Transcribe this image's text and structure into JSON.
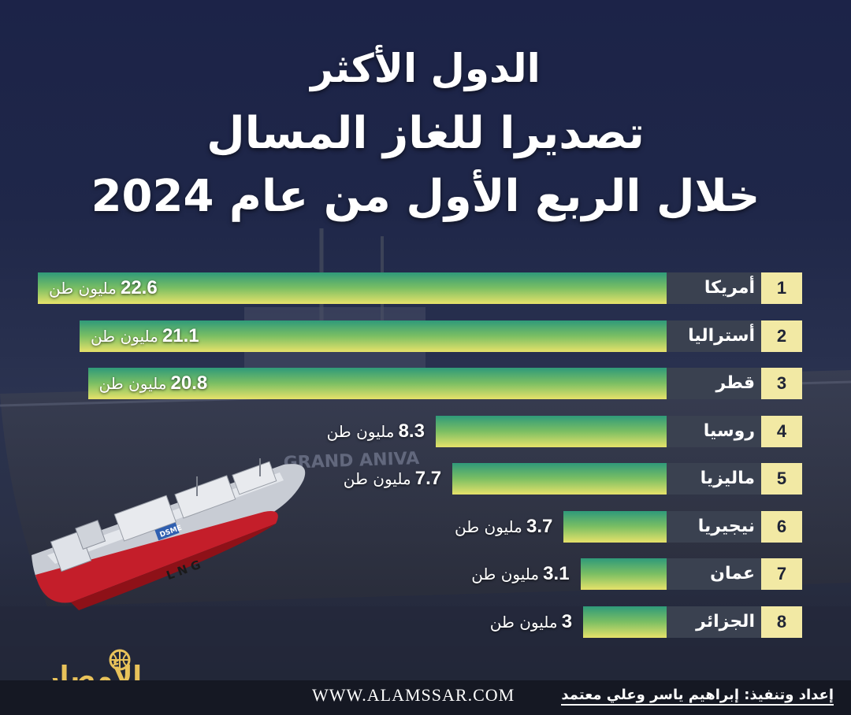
{
  "title": {
    "line1": "الدول الأكثر",
    "line2": "تصديرا للغاز المسال",
    "line3": "خلال الربع الأول من عام 2024"
  },
  "chart_data": {
    "type": "bar",
    "orientation": "horizontal",
    "unit": "مليون طن",
    "categories": [
      "أمريكا",
      "أستراليا",
      "قطر",
      "روسيا",
      "ماليزيا",
      "نيجيريا",
      "عمان",
      "الجزائر"
    ],
    "ranks": [
      "1",
      "2",
      "3",
      "4",
      "5",
      "6",
      "7",
      "8"
    ],
    "values": [
      22.6,
      21.1,
      20.8,
      8.3,
      7.7,
      3.7,
      3.1,
      3
    ],
    "value_labels": [
      "22.6",
      "21.1",
      "20.8",
      "8.3",
      "7.7",
      "3.7",
      "3.1",
      "3"
    ],
    "colors": {
      "bar_top": "#2f9a7a",
      "bar_mid": "#7cbf63",
      "bar_bottom": "#e6e26a",
      "rank_bg": "#f2e9a4",
      "country_bg": "#3a4150"
    }
  },
  "ship": {
    "hull_text": "GRAND ANIVA",
    "model_badge": "DSME",
    "model_text": "L N G"
  },
  "logo": {
    "text": "الأمصار"
  },
  "footer": {
    "website": "WWW.ALAMSSAR.COM",
    "credit": "إعداد وتنفيذ: إبراهيم ياسر وعلي معتمد"
  }
}
